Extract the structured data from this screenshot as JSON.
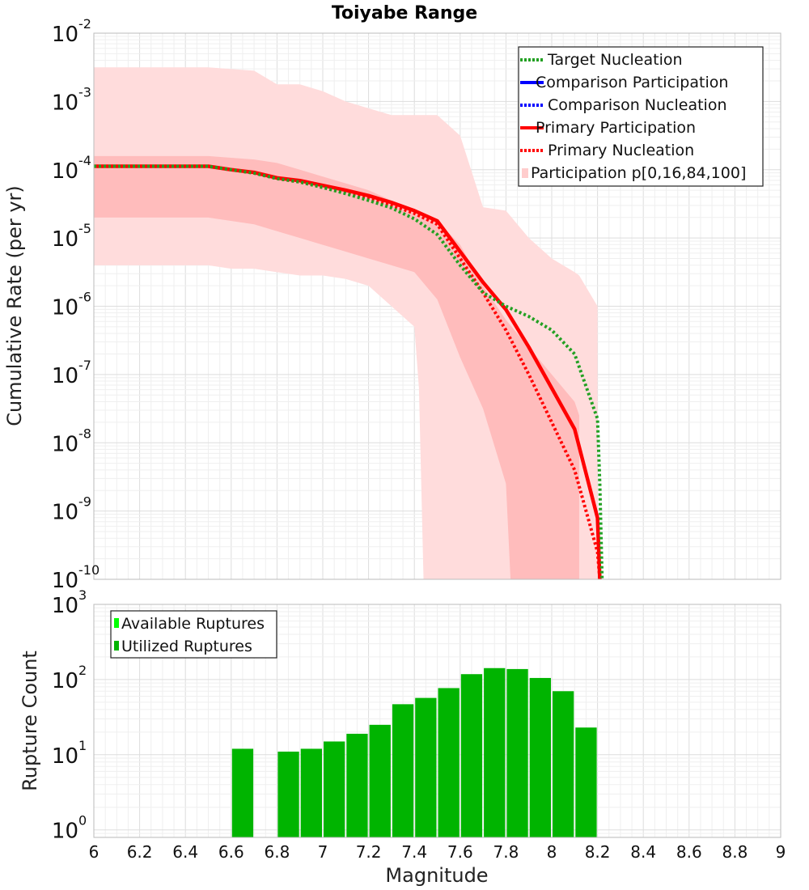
{
  "chart_data": [
    {
      "type": "line",
      "title": "Toiyabe Range",
      "xlabel": "",
      "ylabel": "Cumulative Rate (per yr)",
      "xlim": [
        6,
        9
      ],
      "ylim_log10": [
        -10,
        -2
      ],
      "yscale": "log",
      "y_ticks": [
        {
          "base": "10",
          "exp": "-2",
          "log10": -2
        },
        {
          "base": "10",
          "exp": "-3",
          "log10": -3
        },
        {
          "base": "10",
          "exp": "-4",
          "log10": -4
        },
        {
          "base": "10",
          "exp": "-5",
          "log10": -5
        },
        {
          "base": "10",
          "exp": "-6",
          "log10": -6
        },
        {
          "base": "10",
          "exp": "-7",
          "log10": -7
        },
        {
          "base": "10",
          "exp": "-8",
          "log10": -8
        },
        {
          "base": "10",
          "exp": "-9",
          "log10": -9
        },
        {
          "base": "10",
          "exp": "-10",
          "log10": -10
        }
      ],
      "legend_position": "top-right",
      "legend": [
        {
          "label": "Target Nucleation",
          "color": "#22a022",
          "style": "dotted"
        },
        {
          "label": "Comparison Participation",
          "color": "#0000ff",
          "style": "solid"
        },
        {
          "label": "Comparison Nucleation",
          "color": "#0000ff",
          "style": "dotted"
        },
        {
          "label": "Primary Participation",
          "color": "#ff0000",
          "style": "solid"
        },
        {
          "label": "Primary Nucleation",
          "color": "#ff0000",
          "style": "dotted"
        },
        {
          "label": "Participation p[0,16,84,100]",
          "color": "#ffcccc",
          "style": "box"
        }
      ],
      "bands": [
        {
          "name": "p0-p100",
          "color": "#ffdcdc",
          "x": [
            6.0,
            6.5,
            6.7,
            6.8,
            6.9,
            7.0,
            7.1,
            7.2,
            7.3,
            7.4,
            7.45,
            7.5,
            7.6,
            7.7,
            7.8,
            7.9,
            8.0,
            8.1,
            8.12,
            8.2
          ],
          "upper": [
            -2.5,
            -2.5,
            -2.55,
            -2.75,
            -2.75,
            -2.85,
            -3.0,
            -3.1,
            -3.2,
            -3.2,
            -3.2,
            -3.2,
            -3.5,
            -4.55,
            -4.6,
            -5.0,
            -5.3,
            -5.5,
            -5.55,
            -6.0
          ],
          "x_low": [
            6.0,
            6.5,
            6.6,
            6.7,
            6.8,
            6.9,
            7.0,
            7.1,
            7.2,
            7.3,
            7.4,
            7.42,
            7.44
          ],
          "lower": [
            -5.4,
            -5.4,
            -5.45,
            -5.45,
            -5.5,
            -5.55,
            -5.55,
            -5.6,
            -5.7,
            -6.0,
            -6.3,
            -7.2,
            -10.0
          ]
        },
        {
          "name": "p16-p84",
          "color": "#ffbcbc",
          "x": [
            6.0,
            6.5,
            6.7,
            6.8,
            6.9,
            7.0,
            7.1,
            7.2,
            7.3,
            7.4,
            7.5,
            7.6,
            7.7,
            7.8,
            7.9,
            8.0,
            8.1,
            8.12
          ],
          "upper": [
            -3.8,
            -3.8,
            -3.85,
            -3.9,
            -4.0,
            -4.1,
            -4.2,
            -4.3,
            -4.45,
            -4.6,
            -4.75,
            -5.1,
            -5.7,
            -6.2,
            -6.6,
            -7.0,
            -7.4,
            -7.6
          ],
          "x_low": [
            6.0,
            6.5,
            6.7,
            6.8,
            6.9,
            7.0,
            7.1,
            7.2,
            7.3,
            7.4,
            7.5,
            7.6,
            7.7,
            7.8,
            7.82
          ],
          "lower": [
            -4.7,
            -4.7,
            -4.8,
            -4.9,
            -5.0,
            -5.1,
            -5.2,
            -5.3,
            -5.4,
            -5.5,
            -5.9,
            -6.75,
            -7.5,
            -8.6,
            -10.0
          ]
        }
      ],
      "series": [
        {
          "name": "Primary Participation",
          "color": "#ff0000",
          "style": "solid",
          "x": [
            6.0,
            6.5,
            6.6,
            6.7,
            6.8,
            6.9,
            7.0,
            7.1,
            7.2,
            7.3,
            7.4,
            7.5,
            7.6,
            7.7,
            7.8,
            7.9,
            8.0,
            8.1,
            8.2,
            8.21
          ],
          "log10": [
            -3.95,
            -3.95,
            -4.0,
            -4.04,
            -4.12,
            -4.16,
            -4.23,
            -4.3,
            -4.38,
            -4.48,
            -4.6,
            -4.75,
            -5.2,
            -5.65,
            -6.05,
            -6.6,
            -7.2,
            -7.8,
            -9.1,
            -10.0
          ]
        },
        {
          "name": "Primary Nucleation",
          "color": "#ff0000",
          "style": "dotted",
          "x": [
            6.0,
            6.5,
            6.6,
            6.7,
            6.8,
            6.9,
            7.0,
            7.1,
            7.2,
            7.3,
            7.4,
            7.5,
            7.6,
            7.7,
            7.8,
            7.9,
            8.0,
            8.1,
            8.2,
            8.21
          ],
          "log10": [
            -3.95,
            -3.95,
            -4.0,
            -4.05,
            -4.13,
            -4.18,
            -4.26,
            -4.33,
            -4.42,
            -4.52,
            -4.64,
            -4.8,
            -5.3,
            -5.8,
            -6.35,
            -7.0,
            -7.7,
            -8.4,
            -9.6,
            -10.0
          ]
        },
        {
          "name": "Target Nucleation",
          "color": "#22a022",
          "style": "dotted",
          "x": [
            6.0,
            6.5,
            6.6,
            6.7,
            6.8,
            6.9,
            7.0,
            7.1,
            7.2,
            7.3,
            7.4,
            7.5,
            7.6,
            7.7,
            7.8,
            7.9,
            8.0,
            8.1,
            8.2,
            8.21,
            8.22
          ],
          "log10": [
            -3.95,
            -3.95,
            -4.0,
            -4.05,
            -4.13,
            -4.18,
            -4.26,
            -4.35,
            -4.45,
            -4.56,
            -4.72,
            -4.95,
            -5.4,
            -5.8,
            -6.0,
            -6.15,
            -6.35,
            -6.7,
            -7.65,
            -8.6,
            -10.0
          ]
        }
      ]
    },
    {
      "type": "bar",
      "title": "",
      "xlabel": "Magnitude",
      "ylabel": "Rupture Count",
      "xlim": [
        6,
        9
      ],
      "ylim_log10": [
        -0.1,
        3
      ],
      "yscale": "log",
      "x_ticks": [
        "6",
        "6.2",
        "6.4",
        "6.6",
        "6.8",
        "7",
        "7.2",
        "7.4",
        "7.6",
        "7.8",
        "8",
        "8.2",
        "8.4",
        "8.6",
        "8.8",
        "9"
      ],
      "y_ticks": [
        {
          "base": "10",
          "exp": "3",
          "log10": 3
        },
        {
          "base": "10",
          "exp": "2",
          "log10": 2
        },
        {
          "base": "10",
          "exp": "1",
          "log10": 1
        },
        {
          "base": "10",
          "exp": "0",
          "log10": 0
        }
      ],
      "legend_position": "top-left",
      "legend": [
        {
          "label": "Available Ruptures",
          "color": "#00ff00"
        },
        {
          "label": "Utilized Ruptures",
          "color": "#00b400"
        }
      ],
      "bar_width": 0.1,
      "bars": [
        {
          "x": 6.65,
          "value": 12
        },
        {
          "x": 6.85,
          "value": 11
        },
        {
          "x": 6.95,
          "value": 12
        },
        {
          "x": 7.05,
          "value": 15
        },
        {
          "x": 7.15,
          "value": 19
        },
        {
          "x": 7.25,
          "value": 25
        },
        {
          "x": 7.35,
          "value": 47
        },
        {
          "x": 7.45,
          "value": 57
        },
        {
          "x": 7.55,
          "value": 77
        },
        {
          "x": 7.65,
          "value": 118
        },
        {
          "x": 7.75,
          "value": 142
        },
        {
          "x": 7.85,
          "value": 138
        },
        {
          "x": 7.95,
          "value": 105
        },
        {
          "x": 8.05,
          "value": 70
        },
        {
          "x": 8.15,
          "value": 23
        }
      ]
    }
  ]
}
